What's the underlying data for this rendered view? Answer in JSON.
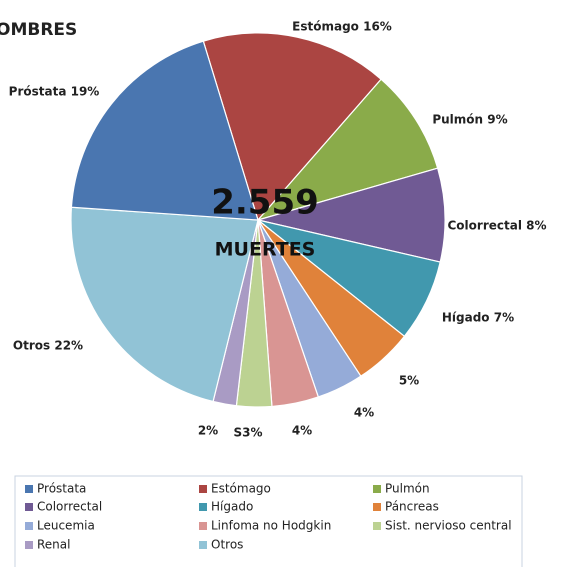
{
  "chart_data": {
    "type": "pie",
    "title": "OMBRES",
    "annotations": [
      "2.559",
      "MUERTES"
    ],
    "categories": [
      "Próstata",
      "Estómago",
      "Pulmón",
      "Colorrectal",
      "Hígado",
      "Páncreas",
      "Leucemia",
      "Linfoma no Hodgkin",
      "Sist. nervioso central",
      "Renal",
      "Otros"
    ],
    "values": [
      19,
      16,
      9,
      8,
      7,
      5,
      4,
      4,
      3,
      2,
      22
    ],
    "value_labels": [
      "Próstata 19%",
      "Estómago 16%",
      "Pulmón 9%",
      "Colorrectal 8%",
      "Hígado 7%",
      "5%",
      "4%",
      "4%",
      "S3%",
      "2%",
      "Otros  22%"
    ],
    "colors": [
      "#4a76b0",
      "#ab4542",
      "#8aab4a",
      "#705a94",
      "#4198ae",
      "#e0823a",
      "#95abd8",
      "#d99593",
      "#bcd292",
      "#a99bc4",
      "#91c3d6"
    ],
    "legend": "bottom"
  }
}
